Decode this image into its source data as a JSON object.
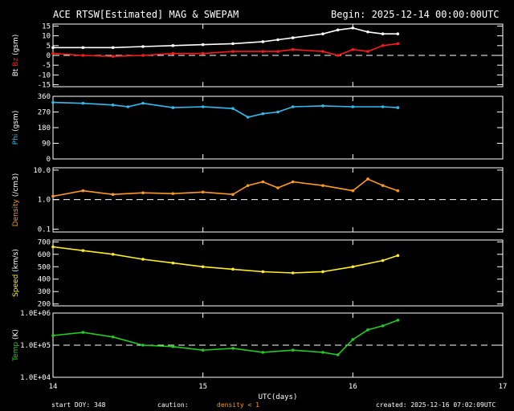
{
  "header": {
    "title": "ACE RTSW[Estimated] MAG & SWEPAM",
    "begin": "Begin: 2025-12-14 00:00:00UTC"
  },
  "footer": {
    "start_doy": "start DOY: 348",
    "caution": "caution:",
    "density_note": "density < 1",
    "created": "created: 2025-12-16 07:02:09UTC"
  },
  "colors": {
    "bt": "#ffffff",
    "bz": "#ff1a1a",
    "phi": "#33bbee",
    "density": "#ff9a1f",
    "speed": "#ffee22",
    "temp": "#22cc22",
    "axes": "#ffffff",
    "note": "#ff9a1f"
  },
  "chart_data": [
    {
      "type": "scatter",
      "title": "Bt / Bz",
      "ylabel_parts": [
        "Bt",
        "Bz",
        "(gsm)"
      ],
      "ylim": [
        -16,
        16
      ],
      "yticks": [
        15,
        10,
        5,
        0,
        -5,
        -10,
        -15
      ],
      "ytick_labels": [
        "15",
        "10",
        "5",
        "0",
        "-5",
        "-10",
        "-15"
      ],
      "dashed_ref": 0,
      "series": [
        {
          "name": "Bt",
          "color": "#ffffff",
          "x": [
            0,
            0.2,
            0.4,
            0.6,
            0.8,
            1.0,
            1.2,
            1.4,
            1.5,
            1.6,
            1.8,
            1.9,
            2.0,
            2.1,
            2.2,
            2.3
          ],
          "y": [
            4,
            4,
            4,
            4.5,
            5,
            5.5,
            6,
            7,
            8,
            9,
            11,
            13,
            14,
            12,
            11,
            11
          ]
        },
        {
          "name": "Bz",
          "color": "#ff1a1a",
          "x": [
            0,
            0.2,
            0.4,
            0.6,
            0.8,
            1.0,
            1.2,
            1.4,
            1.5,
            1.6,
            1.8,
            1.9,
            2.0,
            2.1,
            2.2,
            2.3
          ],
          "y": [
            1,
            0,
            -0.5,
            0,
            1,
            1,
            2,
            2,
            2,
            3,
            2,
            0,
            3,
            2,
            5,
            6
          ]
        }
      ]
    },
    {
      "type": "scatter",
      "title": "Phi",
      "ylabel_parts": [
        "Phi",
        "(gsm)"
      ],
      "ylim": [
        0,
        360
      ],
      "yticks": [
        360,
        270,
        180,
        90,
        0
      ],
      "ytick_labels": [
        "360",
        "270",
        "180",
        "90",
        "0"
      ],
      "series": [
        {
          "name": "Phi",
          "color": "#33bbee",
          "x": [
            0,
            0.2,
            0.4,
            0.5,
            0.6,
            0.8,
            1.0,
            1.2,
            1.3,
            1.4,
            1.5,
            1.6,
            1.8,
            2.0,
            2.2,
            2.3
          ],
          "y": [
            325,
            320,
            310,
            300,
            320,
            295,
            300,
            290,
            240,
            260,
            270,
            300,
            305,
            300,
            300,
            295
          ]
        }
      ]
    },
    {
      "type": "scatter",
      "title": "Density",
      "ylabel_parts": [
        "Density",
        "(/cm3)"
      ],
      "yscale": "log",
      "ylim": [
        0.08,
        12
      ],
      "yticks": [
        10,
        1,
        0.1
      ],
      "ytick_labels": [
        "10.0",
        "1.0",
        "0.1"
      ],
      "dashed_ref": 1,
      "series": [
        {
          "name": "Density",
          "color": "#ff9a1f",
          "x": [
            0,
            0.2,
            0.4,
            0.6,
            0.8,
            1.0,
            1.2,
            1.3,
            1.4,
            1.5,
            1.6,
            1.8,
            2.0,
            2.1,
            2.2,
            2.3
          ],
          "y": [
            1.3,
            2.0,
            1.5,
            1.7,
            1.6,
            1.8,
            1.5,
            3.0,
            4.0,
            2.5,
            4.0,
            3.0,
            2.0,
            5.0,
            3.0,
            2.0
          ]
        }
      ]
    },
    {
      "type": "scatter",
      "title": "Speed",
      "ylabel_parts": [
        "Speed",
        "(km/s)"
      ],
      "ylim": [
        185,
        715
      ],
      "yticks": [
        700,
        600,
        500,
        400,
        300,
        200
      ],
      "ytick_labels": [
        "700",
        "600",
        "500",
        "400",
        "300",
        "200"
      ],
      "series": [
        {
          "name": "Speed",
          "color": "#ffee22",
          "x": [
            0,
            0.2,
            0.4,
            0.6,
            0.8,
            1.0,
            1.2,
            1.4,
            1.6,
            1.8,
            2.0,
            2.2,
            2.3
          ],
          "y": [
            660,
            630,
            600,
            560,
            530,
            500,
            480,
            460,
            450,
            460,
            500,
            550,
            590
          ]
        }
      ]
    },
    {
      "type": "scatter",
      "title": "Temp",
      "ylabel_parts": [
        "Temp",
        "(K)"
      ],
      "yscale": "log",
      "ylim": [
        10000,
        1000000
      ],
      "yticks": [
        1000000,
        100000,
        10000
      ],
      "ytick_labels": [
        "1.0E+06",
        "1.0E+05",
        "1.0E+04"
      ],
      "dashed_ref": 100000,
      "xlabel": "UTC(days)",
      "xticks": [
        0,
        1,
        2,
        3
      ],
      "xtick_labels": [
        "14",
        "15",
        "16",
        "17"
      ],
      "series": [
        {
          "name": "Temp",
          "color": "#22cc22",
          "x": [
            0,
            0.2,
            0.4,
            0.6,
            0.8,
            1.0,
            1.2,
            1.4,
            1.6,
            1.8,
            1.9,
            2.0,
            2.1,
            2.2,
            2.3
          ],
          "y": [
            200000,
            250000,
            180000,
            100000,
            90000,
            70000,
            80000,
            60000,
            70000,
            60000,
            50000,
            150000,
            300000,
            400000,
            600000
          ]
        }
      ]
    }
  ]
}
